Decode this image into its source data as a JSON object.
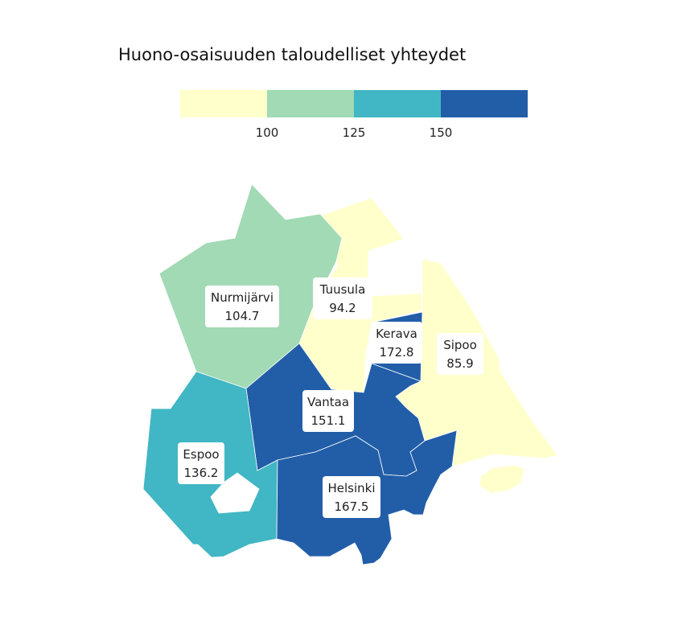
{
  "map": {
    "title": "Huono-osaisuuden taloudelliset yhteydet",
    "legend": {
      "colors": [
        "#ffffcc",
        "#a1dab4",
        "#41b6c4",
        "#225ea8"
      ],
      "breaks": [
        "100",
        "125",
        "150"
      ]
    },
    "municipalities": [
      {
        "key": "nurmijarvi",
        "name": "Nurmijärvi",
        "value": "104.7",
        "color": "#a1dab4"
      },
      {
        "key": "tuusula",
        "name": "Tuusula",
        "value": "94.2",
        "color": "#ffffcc"
      },
      {
        "key": "kerava",
        "name": "Kerava",
        "value": "172.8",
        "color": "#225ea8"
      },
      {
        "key": "sipoo",
        "name": "Sipoo",
        "value": "85.9",
        "color": "#ffffcc"
      },
      {
        "key": "vantaa",
        "name": "Vantaa",
        "value": "151.1",
        "color": "#225ea8"
      },
      {
        "key": "espoo",
        "name": "Espoo",
        "value": "136.2",
        "color": "#41b6c4"
      },
      {
        "key": "helsinki",
        "name": "Helsinki",
        "value": "167.5",
        "color": "#225ea8"
      }
    ]
  }
}
